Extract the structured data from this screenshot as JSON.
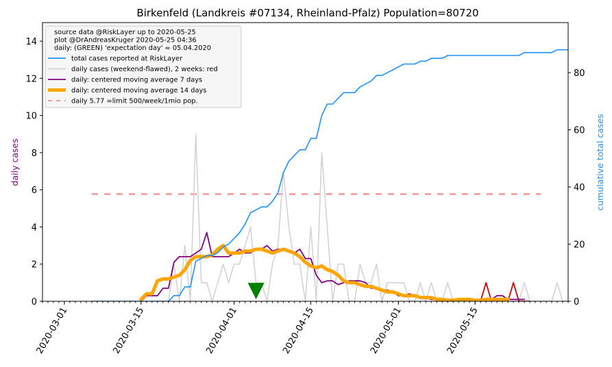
{
  "chart_data": {
    "type": "line",
    "title": "Birkenfeld (Landkreis #07134, Rheinland-Pfalz) Population=80720",
    "ylabel_left": "daily cases",
    "ylabel_right": "cumulative total cases",
    "xlabel": "",
    "x_start_date": "2020-02-26",
    "xlim_dates": [
      "2020-02-26",
      "2020-06-01"
    ],
    "ylim_left": [
      0,
      15
    ],
    "ylim_right": [
      0,
      97.5
    ],
    "yticks_left": [
      "0",
      "2",
      "4",
      "6",
      "8",
      "10",
      "12",
      "14"
    ],
    "yticks_right": [
      "0",
      "20",
      "40",
      "60",
      "80"
    ],
    "xticks": [
      "2020-03-01",
      "2020-03-15",
      "2020-04-01",
      "2020-04-15",
      "2020-05-01",
      "2020-05-15"
    ],
    "legend_placement": "top-left",
    "legend": {
      "header": [
        "source data @RiskLayer up to 2020-05-25",
        "plot @DrAndreasKruger 2020-05-25 04:36",
        "daily: (GREEN) 'expectation day' = 05.04.2020"
      ],
      "entries": [
        {
          "label": "total cases reported at RiskLayer",
          "color": "#1e90ff",
          "style": "solid"
        },
        {
          "label": "daily cases (weekend-flawed), 2 weeks: red",
          "color": "#d3d3d3",
          "style": "solid"
        },
        {
          "label": "daily: centered moving average 7 days",
          "color": "#800080",
          "style": "solid"
        },
        {
          "label": "daily: centered moving average 14 days",
          "color": "#ffa500",
          "style": "thick"
        },
        {
          "label": "daily 5.77 =limit 500/week/1mio pop.",
          "color": "#f08080",
          "style": "dashed"
        }
      ]
    },
    "limit_line": {
      "y": 5.77,
      "x_start": "2020-03-06",
      "x_end": "2020-05-27"
    },
    "expectation_day_marker": {
      "x": "2020-04-05",
      "y": 0.55,
      "color": "#008000"
    },
    "series": [
      {
        "name": "total cases reported at RiskLayer",
        "axis": "right",
        "color": "#1e90ff",
        "start": "2020-03-06",
        "values": [
          0,
          0,
          0,
          0,
          0,
          0,
          0,
          0,
          0,
          0,
          0,
          0,
          0,
          0,
          0,
          2,
          2,
          5,
          5,
          14,
          15,
          16,
          16,
          17,
          19,
          20,
          22,
          24,
          27,
          31,
          32,
          33,
          33,
          35,
          38,
          45,
          49,
          51,
          53,
          53,
          57,
          57,
          65,
          69,
          69,
          71,
          73,
          73,
          73,
          75,
          76,
          77,
          79,
          79,
          80,
          81,
          82,
          83,
          83,
          83,
          84,
          84,
          85,
          85,
          85,
          86,
          86,
          86,
          86,
          86,
          86,
          86,
          86,
          86,
          86,
          86,
          86,
          86,
          86,
          87,
          87,
          87,
          87,
          87,
          87,
          88,
          88,
          88,
          88,
          88,
          88
        ]
      },
      {
        "name": "daily cases (weekend-flawed), 2 weeks: red",
        "axis": "left",
        "color": "#d3d3d3",
        "start": "2020-03-06",
        "values": [
          0,
          0,
          0,
          0,
          0,
          0,
          0,
          0,
          0,
          0,
          0,
          0,
          0,
          0,
          0,
          2,
          0,
          3,
          0,
          9,
          1,
          1,
          0,
          1,
          2,
          1,
          2,
          2,
          3,
          4,
          1,
          1,
          0,
          2,
          3,
          7,
          4,
          2,
          2,
          0,
          4,
          0,
          8,
          4,
          0,
          2,
          2,
          0,
          0,
          2,
          1,
          1,
          2,
          0,
          1,
          1,
          1,
          1,
          0,
          0,
          1,
          0,
          1,
          0,
          0,
          1,
          0,
          0,
          0,
          0,
          0,
          0,
          0,
          0,
          0,
          0,
          0,
          0,
          0,
          1,
          0,
          0,
          0,
          0,
          0,
          1,
          0,
          0,
          0,
          0,
          0
        ]
      },
      {
        "name": "daily cases, last 2 weeks",
        "axis": "left",
        "color": "#d00000",
        "start": "2020-05-11",
        "values": [
          0,
          0,
          0,
          0,
          0,
          0,
          1,
          0,
          0,
          0,
          0,
          1,
          0,
          0,
          0
        ]
      },
      {
        "name": "daily: centered moving average 7 days",
        "axis": "left",
        "color": "#800080",
        "start": "2020-03-15",
        "values": [
          0,
          0.3,
          0.3,
          0.3,
          0.7,
          0.7,
          2.1,
          2.4,
          2.4,
          2.4,
          2.6,
          2.8,
          3.7,
          2.4,
          2.4,
          2.4,
          2.4,
          2.6,
          2.8,
          2.6,
          2.6,
          2.8,
          2.8,
          3.0,
          2.7,
          2.8,
          2.8,
          2.7,
          2.6,
          2.8,
          2.3,
          2.3,
          1.4,
          1.0,
          1.1,
          1.1,
          0.9,
          1.0,
          1.1,
          1.1,
          1.1,
          1.0,
          0.7,
          0.7,
          0.6,
          0.6,
          0.5,
          0.3,
          0.3,
          0.4,
          0.3,
          0.2,
          0.2,
          0.1,
          0.1,
          0.1,
          0.1,
          0.1,
          0.1,
          0.1,
          0.1,
          0.1,
          0.1,
          0.1,
          0.1,
          0.3,
          0.3,
          0.1,
          0.1,
          0.1,
          0.1
        ]
      },
      {
        "name": "daily: centered moving average 14 days",
        "axis": "left",
        "color": "#ffa500",
        "start": "2020-03-15",
        "values": [
          0.1,
          0.4,
          0.4,
          1.1,
          1.2,
          1.2,
          1.3,
          1.4,
          1.7,
          2.2,
          2.4,
          2.4,
          2.4,
          2.5,
          2.8,
          3.0,
          2.6,
          2.6,
          2.6,
          2.7,
          2.7,
          2.8,
          2.8,
          2.7,
          2.6,
          2.7,
          2.8,
          2.7,
          2.6,
          2.4,
          2.1,
          1.9,
          1.8,
          1.9,
          1.7,
          1.6,
          1.4,
          1.1,
          1.0,
          1.0,
          0.9,
          0.8,
          0.8,
          0.7,
          0.6,
          0.5,
          0.5,
          0.4,
          0.3,
          0.3,
          0.3,
          0.2,
          0.2,
          0.2,
          0.1,
          0.1,
          0.05,
          0.05,
          0.1,
          0.1,
          0.1,
          0.05,
          0.05,
          0.1,
          0.1,
          0.1,
          0.1,
          0.1
        ]
      }
    ]
  }
}
